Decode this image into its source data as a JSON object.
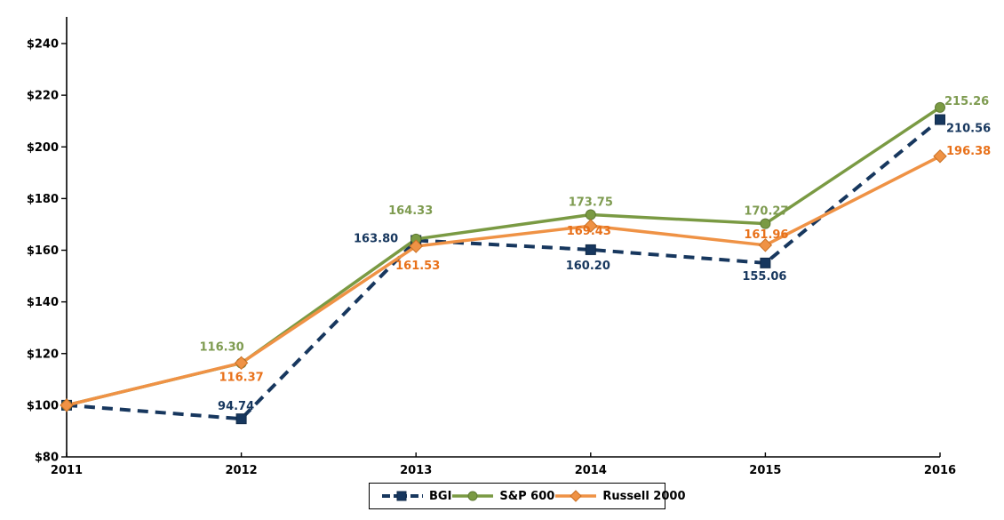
{
  "chart_data": {
    "type": "line",
    "title": "",
    "x_labels": [
      "2011",
      "2012",
      "2013",
      "2014",
      "2015",
      "2016"
    ],
    "y_axis": {
      "min": 80,
      "max": 240,
      "step": 20,
      "prefix": "$",
      "tick_labels": [
        "$80",
        "$100",
        "$120",
        "$140",
        "$160",
        "$180",
        "$200",
        "$220",
        "$240"
      ]
    },
    "grid": false,
    "legend_position": "bottom-center",
    "axis_color": "#000000",
    "series": [
      {
        "name": "BGI",
        "color": "#17375E",
        "label_color": "#17375E",
        "marker_stroke": "#122B49",
        "line_style": "dashed",
        "marker": "square",
        "values": [
          100,
          94.74,
          163.8,
          160.2,
          155.06,
          210.56
        ],
        "point_labels": [
          null,
          "94.74",
          "163.80",
          "160.20",
          "155.06",
          "210.56"
        ],
        "label_dx": [
          0,
          -6,
          -20,
          -3,
          -1,
          7
        ],
        "label_dy": [
          0,
          -10,
          2,
          22,
          19,
          14
        ],
        "label_anchor": [
          null,
          "middle",
          "end",
          "middle",
          "middle",
          "start"
        ]
      },
      {
        "name": "S&P 600",
        "color": "#7A9A43",
        "label_color": "#7E9B50",
        "marker_stroke": "#5E7A32",
        "line_style": "solid",
        "marker": "circle",
        "values": [
          100,
          116.3,
          164.33,
          173.75,
          170.27,
          215.26
        ],
        "point_labels": [
          null,
          "116.30",
          "164.33",
          "173.75",
          "170.27",
          "215.26"
        ],
        "label_dx": [
          0,
          -22,
          -6,
          0,
          1,
          5
        ],
        "label_dy": [
          0,
          -14,
          -28,
          -10,
          -10,
          -3
        ],
        "label_anchor": [
          null,
          "middle",
          "middle",
          "middle",
          "middle",
          "start"
        ]
      },
      {
        "name": "Russell 2000",
        "color": "#EF9245",
        "label_color": "#E8711A",
        "marker_stroke": "#C96F22",
        "line_style": "solid",
        "marker": "diamond",
        "values": [
          100,
          116.37,
          161.53,
          169.43,
          161.96,
          196.38
        ],
        "point_labels": [
          null,
          "116.37",
          "161.53",
          "169.43",
          "161.96",
          "196.38"
        ],
        "label_dx": [
          0,
          0,
          2,
          -2,
          1,
          7
        ],
        "label_dy": [
          0,
          20,
          26,
          10,
          -8,
          -2
        ],
        "label_anchor": [
          null,
          "middle",
          "middle",
          "middle",
          "middle",
          "start"
        ]
      }
    ]
  }
}
